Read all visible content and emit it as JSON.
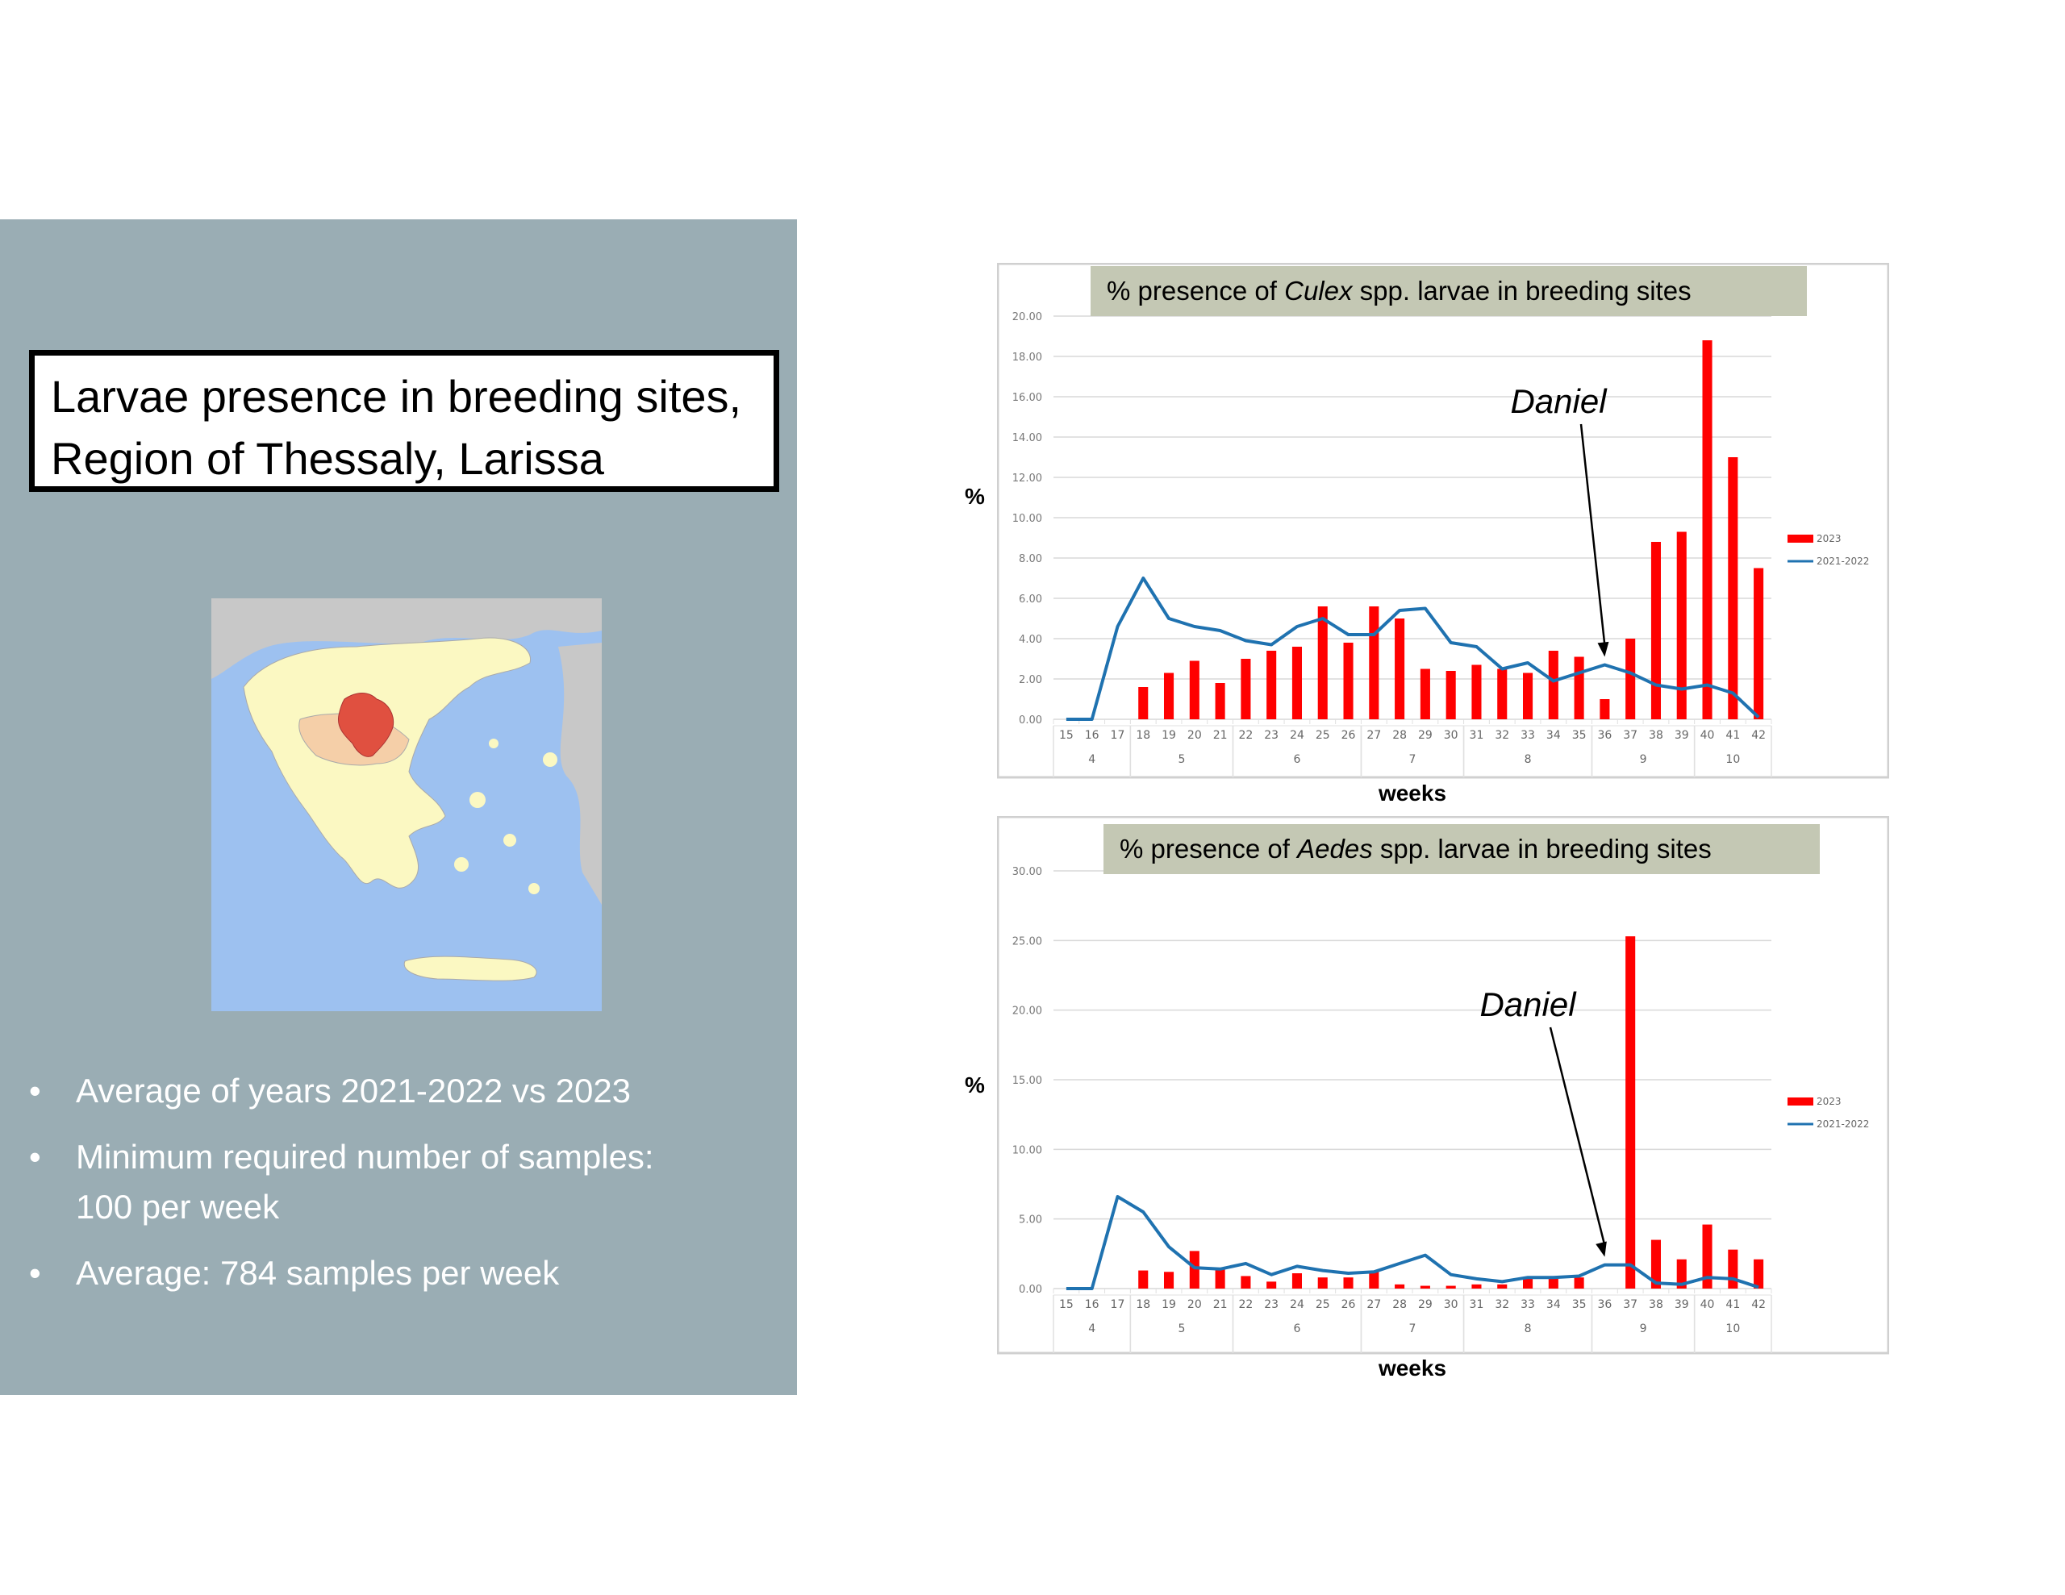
{
  "slide": {
    "title_line1": "Larvae presence in breeding sites,",
    "title_line2": "Region of Thessaly, Larissa",
    "bullets": [
      "Average of years 2021-2022 vs 2023",
      "Minimum required number of samples:",
      "100 per week",
      "Average: 784 samples per week"
    ]
  },
  "colors": {
    "panel": "#9aadb4",
    "bar_2023": "#ff0000",
    "line_2021_2022": "#1f72b0",
    "title_bar": "#c4c8b4"
  },
  "chart_data": [
    {
      "type": "bar",
      "title_pre": "% presence of ",
      "title_italic": "Culex",
      "title_post": " spp. larvae in breeding sites",
      "xlabel": "weeks",
      "ylabel": "%",
      "ylim": [
        0,
        20
      ],
      "yticks": [
        "0.00",
        "2.00",
        "4.00",
        "6.00",
        "8.00",
        "10.00",
        "12.00",
        "14.00",
        "16.00",
        "18.00",
        "20.00"
      ],
      "categories": [
        "15",
        "16",
        "17",
        "18",
        "19",
        "20",
        "21",
        "22",
        "23",
        "24",
        "25",
        "26",
        "27",
        "28",
        "29",
        "30",
        "31",
        "32",
        "33",
        "34",
        "35",
        "36",
        "37",
        "38",
        "39",
        "40",
        "41",
        "42"
      ],
      "month_groups": [
        {
          "label": "4",
          "from": 0,
          "to": 2
        },
        {
          "label": "5",
          "from": 3,
          "to": 6
        },
        {
          "label": "6",
          "from": 7,
          "to": 11
        },
        {
          "label": "7",
          "from": 12,
          "to": 15
        },
        {
          "label": "8",
          "from": 16,
          "to": 20
        },
        {
          "label": "9",
          "from": 21,
          "to": 24
        },
        {
          "label": "10",
          "from": 25,
          "to": 27
        }
      ],
      "series": [
        {
          "name": "2023",
          "type": "bar",
          "values": [
            0,
            0,
            0,
            1.6,
            2.3,
            2.9,
            1.8,
            3.0,
            3.4,
            3.6,
            5.6,
            3.8,
            5.6,
            5.0,
            2.5,
            2.4,
            2.7,
            2.5,
            2.3,
            3.4,
            3.1,
            1.0,
            4.0,
            8.8,
            9.3,
            18.8,
            13.0,
            7.5
          ]
        },
        {
          "name": "2021-2022",
          "type": "line",
          "values": [
            0,
            0,
            4.6,
            7.0,
            5.0,
            4.6,
            4.4,
            3.9,
            3.7,
            4.6,
            5.0,
            4.2,
            4.2,
            5.4,
            5.5,
            3.8,
            3.6,
            2.5,
            2.8,
            1.9,
            2.3,
            2.7,
            2.3,
            1.7,
            1.5,
            1.7,
            1.3,
            0.1
          ]
        }
      ],
      "annotation": {
        "text": "Daniel",
        "week": "36"
      },
      "legend": "right"
    },
    {
      "type": "bar",
      "title_pre": "% presence of ",
      "title_italic": "Aedes",
      "title_post": " spp. larvae in breeding sites",
      "xlabel": "weeks",
      "ylabel": "%",
      "ylim": [
        0,
        30
      ],
      "yticks": [
        "0.00",
        "5.00",
        "10.00",
        "15.00",
        "20.00",
        "25.00",
        "30.00"
      ],
      "categories": [
        "15",
        "16",
        "17",
        "18",
        "19",
        "20",
        "21",
        "22",
        "23",
        "24",
        "25",
        "26",
        "27",
        "28",
        "29",
        "30",
        "31",
        "32",
        "33",
        "34",
        "35",
        "36",
        "37",
        "38",
        "39",
        "40",
        "41",
        "42"
      ],
      "month_groups": [
        {
          "label": "4",
          "from": 0,
          "to": 2
        },
        {
          "label": "5",
          "from": 3,
          "to": 6
        },
        {
          "label": "6",
          "from": 7,
          "to": 11
        },
        {
          "label": "7",
          "from": 12,
          "to": 15
        },
        {
          "label": "8",
          "from": 16,
          "to": 20
        },
        {
          "label": "9",
          "from": 21,
          "to": 24
        },
        {
          "label": "10",
          "from": 25,
          "to": 27
        }
      ],
      "series": [
        {
          "name": "2023",
          "type": "bar",
          "values": [
            0,
            0,
            0,
            1.3,
            1.2,
            2.7,
            1.5,
            0.9,
            0.5,
            1.1,
            0.8,
            0.8,
            1.2,
            0.3,
            0.2,
            0.2,
            0.3,
            0.3,
            0.8,
            0.8,
            0.8,
            0,
            25.3,
            3.5,
            2.1,
            4.6,
            2.8,
            2.1
          ]
        },
        {
          "name": "2021-2022",
          "type": "line",
          "values": [
            0,
            0,
            6.6,
            5.5,
            3.0,
            1.5,
            1.4,
            1.8,
            1.0,
            1.6,
            1.3,
            1.1,
            1.2,
            1.8,
            2.4,
            1.0,
            0.7,
            0.5,
            0.8,
            0.8,
            0.9,
            1.7,
            1.7,
            0.4,
            0.3,
            0.8,
            0.7,
            0.1
          ]
        }
      ],
      "annotation": {
        "text": "Daniel",
        "week": "36"
      },
      "legend": "right"
    }
  ]
}
